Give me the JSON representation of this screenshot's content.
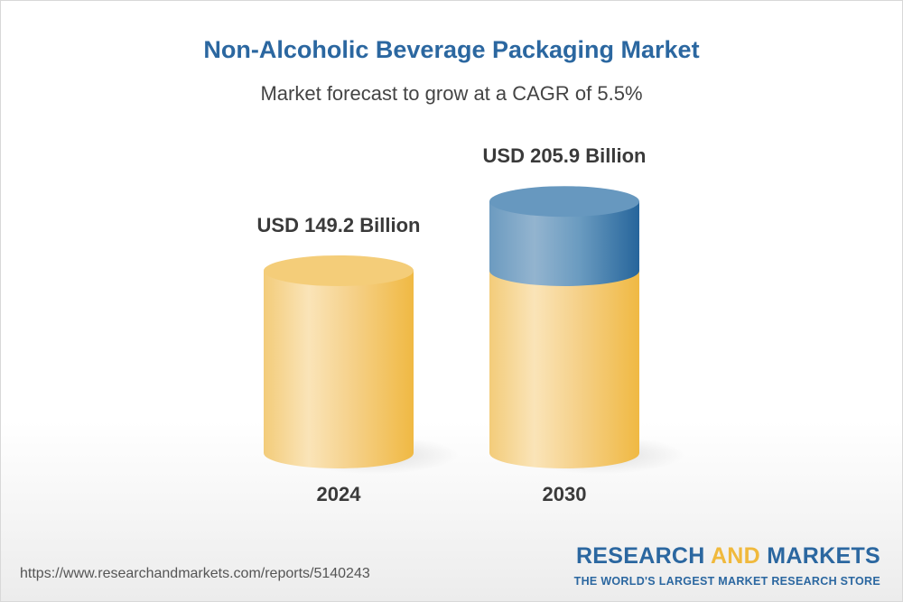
{
  "chart_data": {
    "type": "bar",
    "style": "3d-cylinder",
    "title": "Non-Alcoholic Beverage Packaging Market",
    "subtitle": "Market forecast to grow at a CAGR of 5.5%",
    "categories": [
      "2024",
      "2030"
    ],
    "values": [
      149.2,
      205.9
    ],
    "data_labels": [
      "USD 149.2 Billion",
      "USD 205.9 Billion"
    ],
    "xlabel": "",
    "ylabel": "",
    "grid": false,
    "colors": {
      "base": "#f2c464",
      "growth": "#2b67a0"
    }
  },
  "footer": {
    "url": "https://www.researchandmarkets.com/reports/5140243",
    "logo_part1": "RESEARCH ",
    "logo_part2": "AND",
    "logo_part3": " MARKETS",
    "logo_tagline": "THE WORLD'S LARGEST MARKET RESEARCH STORE"
  }
}
